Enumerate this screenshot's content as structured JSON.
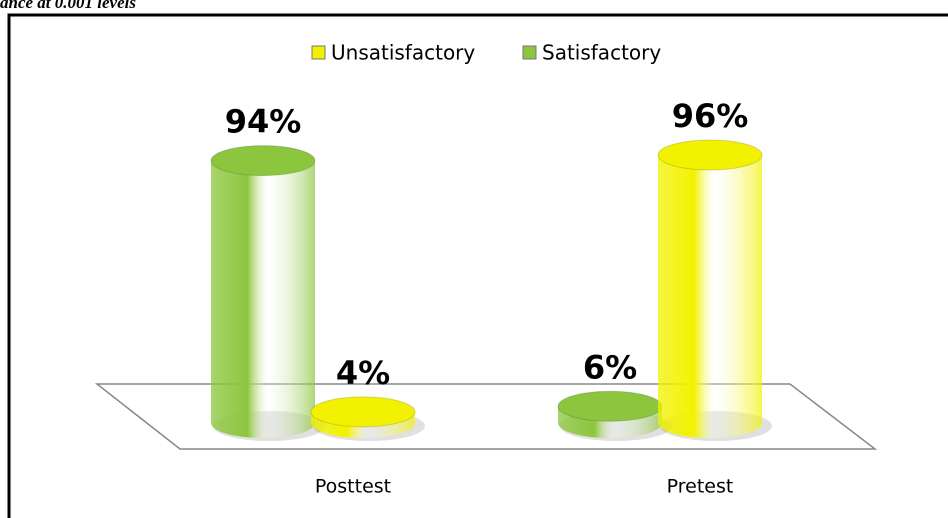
{
  "caption": "ance at 0.001 levels",
  "chart_data": {
    "type": "bar3d",
    "categories": [
      "Posttest",
      "Pretest"
    ],
    "series": [
      {
        "name": "Unsatisfactory",
        "color": "#f2f200",
        "values": [
          4,
          96
        ],
        "value_labels": [
          "4%",
          "96%"
        ]
      },
      {
        "name": "Satisfactory",
        "color": "#8cc63e",
        "values": [
          94,
          6
        ],
        "value_labels": [
          "94%",
          "6%"
        ]
      }
    ],
    "legend": "top"
  }
}
